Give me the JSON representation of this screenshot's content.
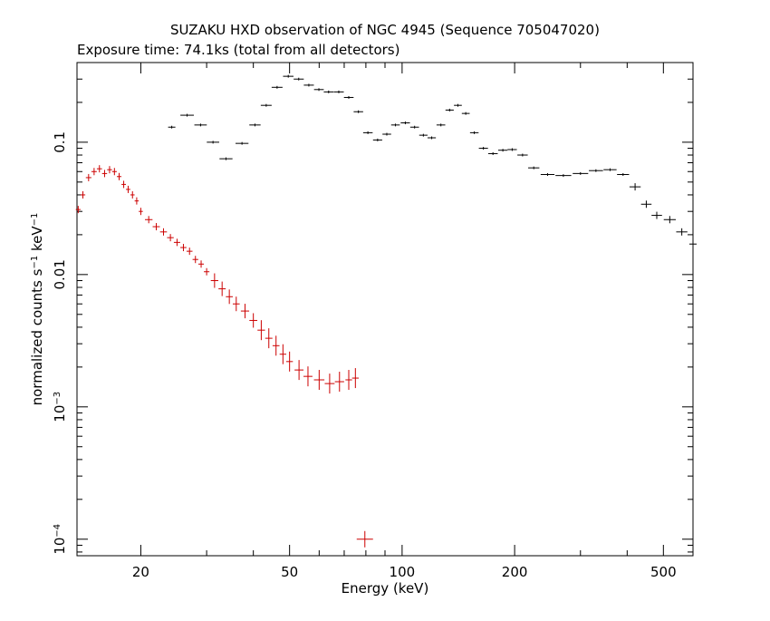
{
  "chart_data": {
    "type": "scatter",
    "title": "SUZAKU HXD observation of NGC 4945 (Sequence 705047020)",
    "subtitle": "Exposure time: 74.1ks (total from all detectors)",
    "xlabel": "Energy (keV)",
    "ylabel": "normalized counts s^-1 keV^-1",
    "xscale": "log",
    "yscale": "log",
    "xlim": [
      13.5,
      600
    ],
    "ylim": [
      7.5e-05,
      0.4
    ],
    "x_ticks": [
      {
        "value": 20,
        "label": "20"
      },
      {
        "value": 50,
        "label": "50"
      },
      {
        "value": 100,
        "label": "100"
      },
      {
        "value": 200,
        "label": "200"
      },
      {
        "value": 500,
        "label": "500"
      }
    ],
    "y_ticks": [
      {
        "value": 0.1,
        "label": "0.1"
      },
      {
        "value": 0.01,
        "label": "0.01"
      },
      {
        "value": 0.001,
        "label": "10",
        "exp": "-3"
      },
      {
        "value": 0.0001,
        "label": "10",
        "exp": "-4"
      }
    ],
    "series": [
      {
        "color": "#000000",
        "points": [
          [
            24.2,
            0.13
          ],
          [
            26.6,
            0.16
          ],
          [
            28.9,
            0.135
          ],
          [
            31.2,
            0.1
          ],
          [
            33.8,
            0.075
          ],
          [
            37.3,
            0.098
          ],
          [
            40.4,
            0.135
          ],
          [
            43.3,
            0.19
          ],
          [
            46.3,
            0.26
          ],
          [
            49.6,
            0.315
          ],
          [
            52.9,
            0.3
          ],
          [
            56.3,
            0.27
          ],
          [
            59.9,
            0.25
          ],
          [
            63.6,
            0.24
          ],
          [
            67.7,
            0.24
          ],
          [
            72.0,
            0.218
          ],
          [
            76.4,
            0.17
          ],
          [
            81.0,
            0.118
          ],
          [
            86.0,
            0.104
          ],
          [
            91.0,
            0.115
          ],
          [
            96.0,
            0.135
          ],
          [
            102.0,
            0.14
          ],
          [
            108.0,
            0.13
          ],
          [
            114.0,
            0.113
          ],
          [
            120.0,
            0.108
          ],
          [
            127.0,
            0.135
          ],
          [
            134.0,
            0.175
          ],
          [
            141.0,
            0.19
          ],
          [
            148.0,
            0.165
          ],
          [
            156.0,
            0.118
          ],
          [
            165.0,
            0.09
          ],
          [
            175.0,
            0.082
          ],
          [
            186.0,
            0.087
          ],
          [
            197.0,
            0.088
          ],
          [
            210.0,
            0.08
          ],
          [
            225.0,
            0.064
          ],
          [
            245.0,
            0.057
          ],
          [
            270.0,
            0.056
          ],
          [
            300.0,
            0.058
          ],
          [
            330.0,
            0.061
          ],
          [
            360.0,
            0.062
          ],
          [
            390.0,
            0.057
          ],
          [
            420.0,
            0.046
          ],
          [
            450.0,
            0.034
          ],
          [
            480.0,
            0.028
          ],
          [
            520.0,
            0.026
          ],
          [
            560.0,
            0.021
          ],
          [
            600.0,
            0.017
          ]
        ]
      },
      {
        "color": "#cc0000",
        "points": [
          [
            13.6,
            0.031
          ],
          [
            14.0,
            0.04
          ],
          [
            14.5,
            0.054
          ],
          [
            15.0,
            0.06
          ],
          [
            15.5,
            0.063
          ],
          [
            16.0,
            0.058
          ],
          [
            16.5,
            0.062
          ],
          [
            17.0,
            0.06
          ],
          [
            17.5,
            0.055
          ],
          [
            18.0,
            0.048
          ],
          [
            18.5,
            0.044
          ],
          [
            19.0,
            0.04
          ],
          [
            19.5,
            0.036
          ],
          [
            20.0,
            0.03
          ],
          [
            21.0,
            0.026
          ],
          [
            22.0,
            0.023
          ],
          [
            23.0,
            0.021
          ],
          [
            24.0,
            0.019
          ],
          [
            25.0,
            0.0175
          ],
          [
            26.0,
            0.016
          ],
          [
            27.0,
            0.015
          ],
          [
            28.0,
            0.013
          ],
          [
            29.0,
            0.012
          ],
          [
            30.0,
            0.0105
          ],
          [
            31.5,
            0.009
          ],
          [
            33.0,
            0.0078
          ],
          [
            34.5,
            0.0068
          ],
          [
            36.0,
            0.006
          ],
          [
            38.0,
            0.0053
          ],
          [
            40.0,
            0.0045
          ],
          [
            42.0,
            0.0038
          ],
          [
            44.0,
            0.0033
          ],
          [
            46.0,
            0.0029
          ],
          [
            48.0,
            0.0025
          ],
          [
            50.0,
            0.0022
          ],
          [
            53.0,
            0.0019
          ],
          [
            56.0,
            0.0017
          ],
          [
            60.0,
            0.0016
          ],
          [
            64.0,
            0.0015
          ],
          [
            68.0,
            0.00155
          ],
          [
            72.0,
            0.0016
          ],
          [
            75.0,
            0.00165
          ],
          [
            79.5,
            0.0001
          ]
        ]
      }
    ]
  }
}
